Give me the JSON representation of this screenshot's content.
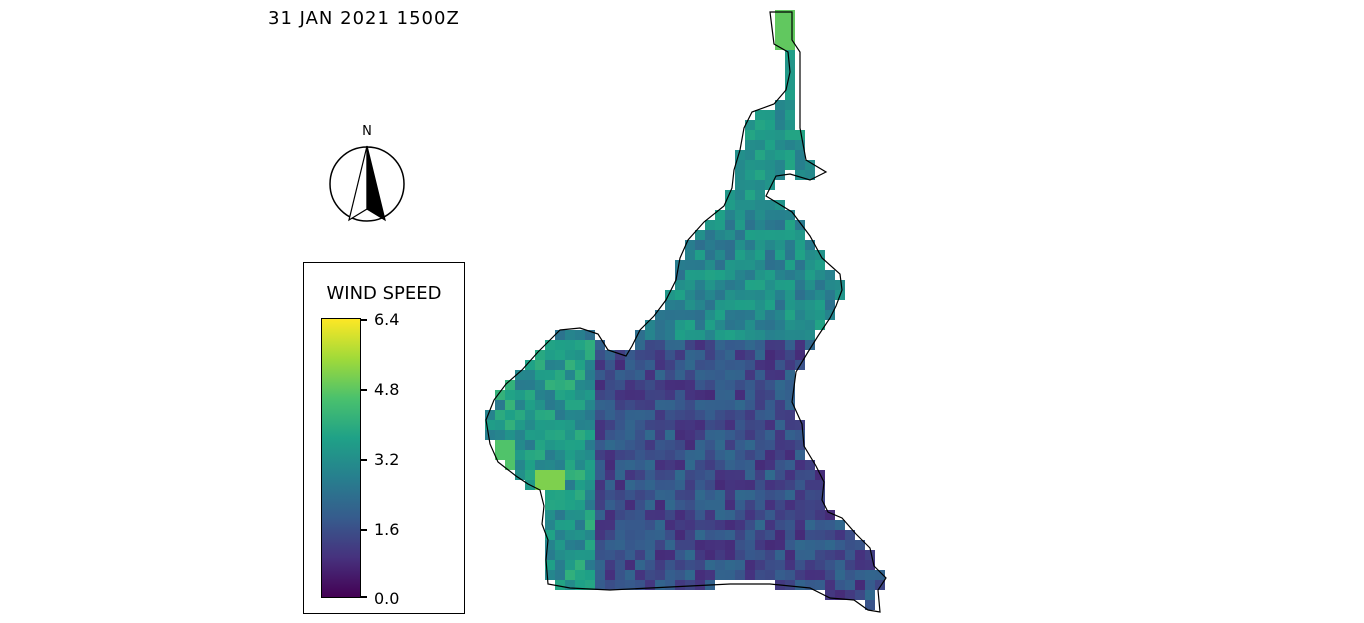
{
  "timestamp": "31 JAN 2021 1500Z",
  "north_label": "N",
  "legend": {
    "title": "WIND SPEED",
    "ticks": [
      "6.4",
      "4.8",
      "3.2",
      "1.6",
      "0.0"
    ],
    "min": 0.0,
    "max": 6.4
  },
  "map": {
    "variable": "wind speed",
    "colormap": "viridis"
  }
}
